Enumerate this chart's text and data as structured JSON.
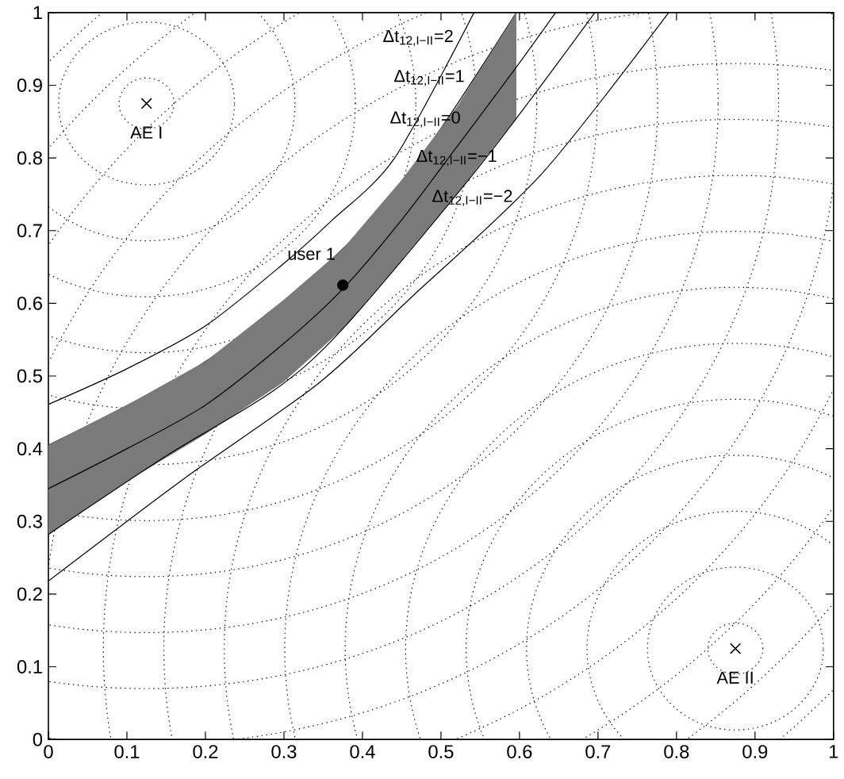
{
  "chart_data": {
    "type": "line",
    "xlim": [
      0,
      1
    ],
    "ylim": [
      0,
      1
    ],
    "xticks": [
      0,
      0.1,
      0.2,
      0.3,
      0.4,
      0.5,
      0.6,
      0.7,
      0.8,
      0.9,
      1
    ],
    "yticks": [
      0,
      0.1,
      0.2,
      0.3,
      0.4,
      0.5,
      0.6,
      0.7,
      0.8,
      0.9,
      1
    ],
    "line_style": "solid",
    "series": [
      {
        "color": "#000000",
        "x": [
          0,
          0.1,
          0.2,
          0.3,
          0.361,
          0.441,
          0.542
        ],
        "values": [
          0.461,
          0.51,
          0.569,
          0.655,
          0.714,
          0.8,
          1
        ]
      },
      {
        "color": "#000000",
        "x": [
          0,
          0.2,
          0.375,
          0.48,
          0.596
        ],
        "values": [
          0.405,
          0.52,
          0.675,
          0.81,
          1
        ]
      },
      {
        "color": "#000000",
        "x": [
          0,
          0.1,
          0.2,
          0.3,
          0.375,
          0.45,
          0.52,
          0.596,
          0.646
        ],
        "values": [
          0.345,
          0.4,
          0.46,
          0.545,
          0.62,
          0.715,
          0.815,
          0.925,
          1
        ],
        "upper": [
          0.405,
          0.46,
          0.52,
          0.605,
          0.675,
          0.77,
          0.87,
          1,
          null
        ],
        "lower": [
          0.282,
          0.355,
          0.42,
          0.492,
          0.565,
          0.66,
          0.75,
          0.855,
          null
        ]
      },
      {
        "color": "#000000",
        "x": [
          0,
          0.15,
          0.287,
          0.375,
          0.55,
          0.696
        ],
        "values": [
          0.282,
          0.39,
          0.48,
          0.565,
          0.79,
          1
        ]
      },
      {
        "color": "#000000",
        "x": [
          0,
          0.173,
          0.344,
          0.461,
          0.629,
          0.79
        ],
        "values": [
          0.218,
          0.359,
          0.49,
          0.607,
          0.779,
          1
        ]
      },
      {
        "type": "scatter",
        "marker": "cross",
        "color": "#000000",
        "x": [
          0.125
        ],
        "values": [
          0.875
        ]
      },
      {
        "type": "scatter",
        "marker": "cross",
        "color": "#000000",
        "x": [
          0.875
        ],
        "values": [
          0.125
        ]
      },
      {
        "type": "scatter",
        "marker": "circle",
        "color": "#000000",
        "x": [
          0.375
        ],
        "values": [
          0.625
        ]
      }
    ],
    "annotations": [
      "Δt$_{12,I−II}$=2",
      "Δt$_{12,I−II}$=1",
      "Δt$_{12,I−II}$=0",
      "Δt$_{12,I−II}$=−1",
      "Δt$_{12,I−II}$=−2",
      "user 1",
      "AE I",
      "AE II"
    ]
  }
}
